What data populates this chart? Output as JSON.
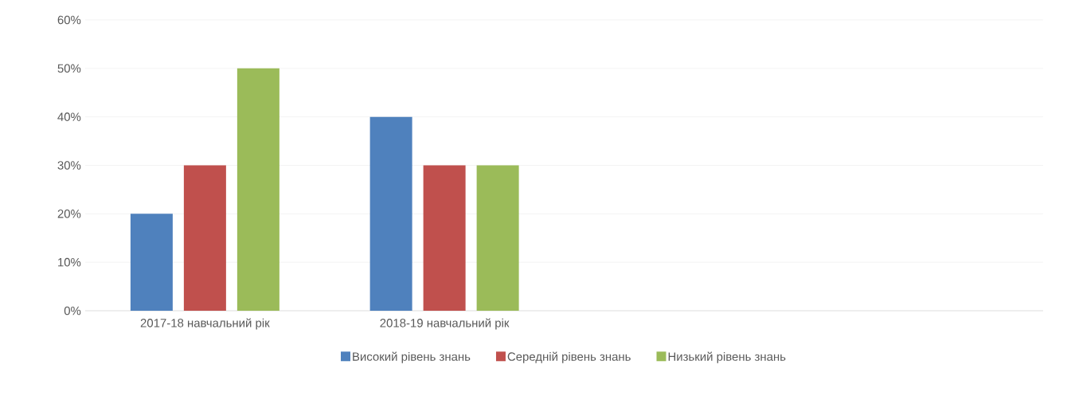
{
  "chart_data": {
    "type": "bar",
    "categories": [
      "2017-18 навчальний рік",
      "2018-19 навчальний рік",
      null,
      null
    ],
    "series": [
      {
        "name": "Високий рівень знань",
        "color": "#4f81bd",
        "values": [
          20,
          40,
          null,
          null
        ]
      },
      {
        "name": "Середній рівень знань",
        "color": "#c0504d",
        "values": [
          30,
          30,
          null,
          null
        ]
      },
      {
        "name": "Низький рівень знань",
        "color": "#9bbb59",
        "values": [
          50,
          30,
          null,
          null
        ]
      }
    ],
    "ylim": [
      0,
      60
    ],
    "yticks": [
      {
        "value": 0,
        "label": "0%"
      },
      {
        "value": 10,
        "label": "10%"
      },
      {
        "value": 20,
        "label": "20%"
      },
      {
        "value": 30,
        "label": "30%"
      },
      {
        "value": 40,
        "label": "40%"
      },
      {
        "value": 50,
        "label": "50%"
      },
      {
        "value": 60,
        "label": "60%"
      }
    ],
    "grid": "y",
    "legend": "bottom"
  }
}
